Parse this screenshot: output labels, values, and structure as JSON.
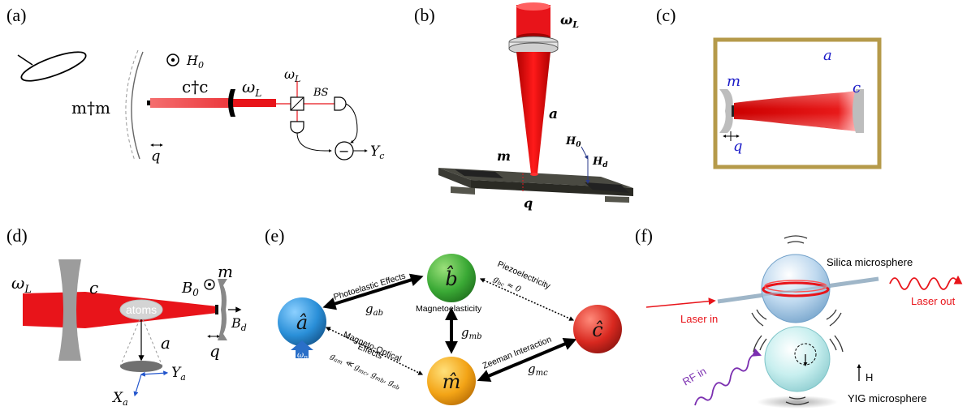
{
  "panels": {
    "a": {
      "label": "(a)",
      "h0": "H",
      "h0_sub": "0",
      "cdag_c": "c†c",
      "omega_l": "ω",
      "omega_l_sub": "L",
      "omega_l2": "ω",
      "omega_l2_sub": "L",
      "bs": "BS",
      "mdag_m": "m†m",
      "q": "q",
      "yc": "Y",
      "yc_sub": "c",
      "minus": "−"
    },
    "b": {
      "label": "(b)",
      "omega_l": "ω",
      "omega_l_sub": "L",
      "a": "a",
      "m": "m",
      "q": "q",
      "h0": "H",
      "h0_sub": "0",
      "hd": "H",
      "hd_sub": "d"
    },
    "c": {
      "label": "(c)",
      "a": "a",
      "m": "m",
      "c": "c",
      "q": "q"
    },
    "d": {
      "label": "(d)",
      "omega_l": "ω",
      "omega_l_sub": "L",
      "c": "c",
      "b0": "B",
      "b0_sub": "0",
      "m": "m",
      "atoms": "atoms",
      "a": "a",
      "bd": "B",
      "bd_sub": "d",
      "q": "q",
      "xa": "X",
      "xa_sub": "a",
      "ya": "Y",
      "ya_sub": "a"
    },
    "e": {
      "label": "(e)",
      "node_b": "b̂",
      "node_a": "â",
      "node_c": "ĉ",
      "node_m": "m̂",
      "omega_p": "ω",
      "omega_p_sub": "p",
      "photoelastic": "Photoelastic Effects",
      "g_ab": "g",
      "g_ab_sub": "ab",
      "magnetoelasticity": "Magnetoelasticity",
      "g_mb": "g",
      "g_mb_sub": "mb",
      "piezo": "Piezoelectricity",
      "g_bc": "g",
      "g_bc_sub": "bc",
      "g_bc_eq": " ≈ 0",
      "magneto_optical_1": "Magneto-Optical",
      "magneto_optical_2": "Effects",
      "g_am": "g",
      "g_am_sub": "am",
      "g_am_rel": " ≪ g",
      "g_am_rel_sub": "mc",
      "g_am_rest": ", g",
      "g_am_rest_sub": "mb",
      "g_am_rest2": ", g",
      "g_am_rest2_sub": "ab",
      "zeeman": "Zeeman Interaction",
      "g_mc": "g",
      "g_mc_sub": "mc"
    },
    "f": {
      "label": "(f)",
      "silica": "Silica microsphere",
      "laser_in": "Laser in",
      "laser_out": "Laser out",
      "rf_in": "RF in",
      "h": "H",
      "yig": "YIG microsphere"
    }
  },
  "colors": {
    "laser_red": "#e8141a",
    "cavity_gold": "#b59a4a",
    "mirror_gray": "#9c9c9c",
    "node_green": "#3aa935",
    "node_blue": "#2a8fd8",
    "node_red": "#d8281f",
    "node_orange": "#f3a416",
    "label_blue": "#1a1ac8",
    "rf_purple": "#7b2fb0"
  }
}
